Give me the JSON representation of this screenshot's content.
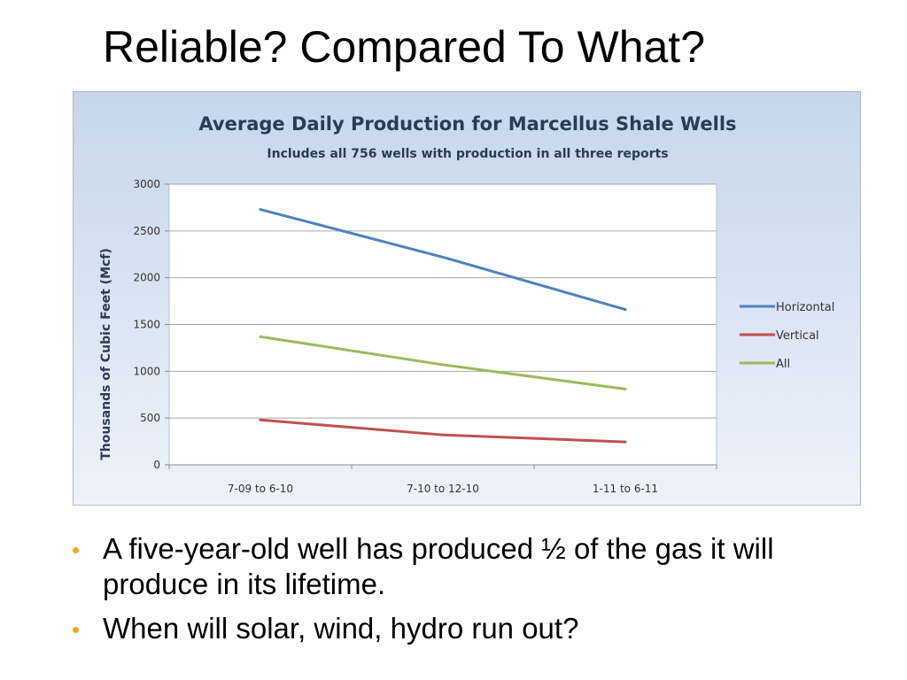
{
  "slide": {
    "title": "Reliable?  Compared To What?",
    "bullets": [
      "A five-year-old well has produced ½ of the gas it will produce in its lifetime.",
      "When will solar, wind, hydro run out?"
    ],
    "bullet_color": "#f5a623"
  },
  "chart_data": {
    "type": "line",
    "title": "Average Daily Production for Marcellus Shale Wells",
    "subtitle": "Includes all 756 wells with production in all three reports",
    "xlabel": "",
    "ylabel": "Thousands of Cubic Feet (Mcf)",
    "ylim": [
      0,
      3000
    ],
    "yticks": [
      0,
      500,
      1000,
      1500,
      2000,
      2500,
      3000
    ],
    "categories": [
      "7-09 to 6-10",
      "7-10 to 12-10",
      "1-11 to 6-11"
    ],
    "grid": true,
    "legend_position": "right",
    "series": [
      {
        "name": "Horizontal",
        "values": [
          2730,
          2220,
          1660
        ],
        "color": "#4f81bd"
      },
      {
        "name": "Vertical",
        "values": [
          480,
          320,
          245
        ],
        "color": "#c0504d"
      },
      {
        "name": "All",
        "values": [
          1370,
          1070,
          810
        ],
        "color": "#9bbb59"
      }
    ]
  }
}
